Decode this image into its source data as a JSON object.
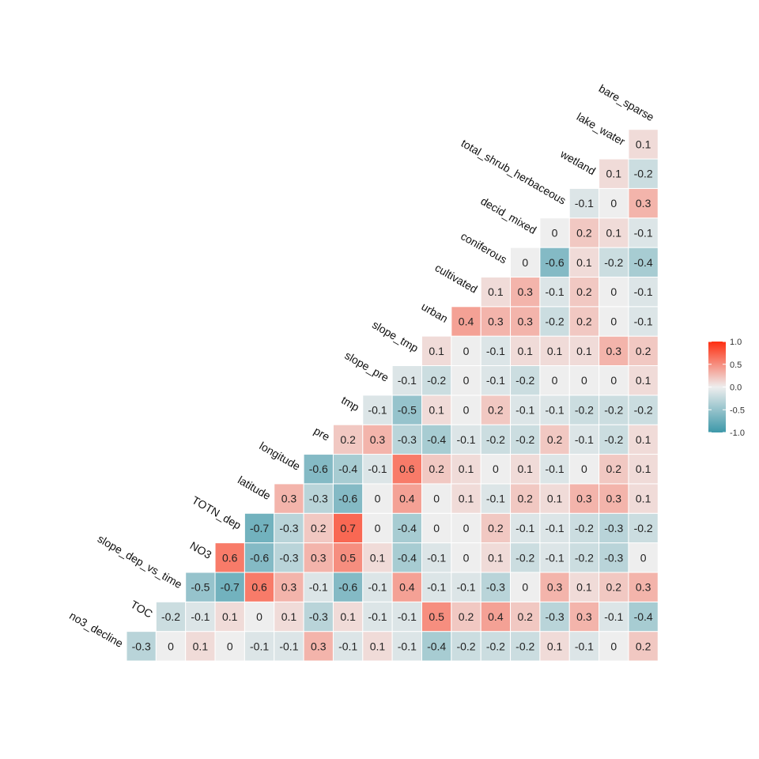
{
  "chart_data": {
    "type": "heatmap",
    "title": "",
    "variables": [
      "no3_decline",
      "TOC",
      "slope_dep_vs_time",
      "NO3",
      "TOTN_dep",
      "latitude",
      "longitude",
      "pre",
      "tmp",
      "slope_pre",
      "slope_tmp",
      "urban",
      "cultivated",
      "coniferous",
      "decid_mixed",
      "total_shrub_herbaceous",
      "wetland",
      "lake_water",
      "bare_sparse"
    ],
    "rows": [
      [
        -0.3,
        0,
        0.1,
        0,
        -0.1,
        -0.1,
        0.3,
        -0.1,
        0.1,
        -0.1,
        -0.4,
        -0.2,
        -0.2,
        -0.2,
        0.1,
        -0.1,
        0,
        0.2
      ],
      [
        -0.2,
        -0.1,
        0.1,
        0,
        0.1,
        -0.3,
        0.1,
        -0.1,
        -0.1,
        0.5,
        0.2,
        0.4,
        0.2,
        -0.3,
        0.3,
        -0.1,
        -0.4
      ],
      [
        -0.5,
        -0.7,
        0.6,
        0.3,
        -0.1,
        -0.6,
        -0.1,
        0.4,
        -0.1,
        -0.1,
        -0.3,
        0,
        0.3,
        0.1,
        0.2,
        0.3
      ],
      [
        0.6,
        -0.6,
        -0.3,
        0.3,
        0.5,
        0.1,
        -0.4,
        -0.1,
        0,
        0.1,
        -0.2,
        -0.1,
        -0.2,
        -0.3,
        0
      ],
      [
        -0.7,
        -0.3,
        0.2,
        0.7,
        0,
        -0.4,
        0,
        0,
        0.2,
        -0.1,
        -0.1,
        -0.2,
        -0.3,
        -0.2
      ],
      [
        0.3,
        -0.3,
        -0.6,
        0,
        0.4,
        0,
        0.1,
        -0.1,
        0.2,
        0.1,
        0.3,
        0.3,
        0.1
      ],
      [
        -0.6,
        -0.4,
        -0.1,
        0.6,
        0.2,
        0.1,
        0,
        0.1,
        -0.1,
        0,
        0.2,
        0.1
      ],
      [
        0.2,
        0.3,
        -0.3,
        -0.4,
        -0.1,
        -0.2,
        -0.2,
        0.2,
        -0.1,
        -0.2,
        0.1
      ],
      [
        -0.1,
        -0.5,
        0.1,
        0,
        0.2,
        -0.1,
        -0.1,
        -0.2,
        -0.2,
        -0.2
      ],
      [
        -0.1,
        -0.2,
        0,
        -0.1,
        -0.2,
        0,
        0,
        0,
        0.1
      ],
      [
        0.1,
        0,
        -0.1,
        0.1,
        0.1,
        0.1,
        0.3,
        0.2
      ],
      [
        0.4,
        0.3,
        0.3,
        -0.2,
        0.2,
        0,
        -0.1
      ],
      [
        0.1,
        0.3,
        -0.1,
        0.2,
        0,
        -0.1
      ],
      [
        0,
        -0.6,
        0.1,
        -0.2,
        -0.4
      ],
      [
        0,
        0.2,
        0.1,
        -0.1
      ],
      [
        -0.1,
        0,
        0.3
      ],
      [
        0.1,
        -0.2
      ],
      [
        0.1
      ]
    ],
    "legend": {
      "ticks": [
        "1.0",
        "0.5",
        "0.0",
        "-0.5",
        "-1.0"
      ],
      "placement": "right"
    },
    "limits": [
      -1,
      1
    ],
    "colors": {
      "low": "#3d98a9",
      "mid": "#eeeeee",
      "high": "#fe2e10"
    },
    "grid": false
  }
}
